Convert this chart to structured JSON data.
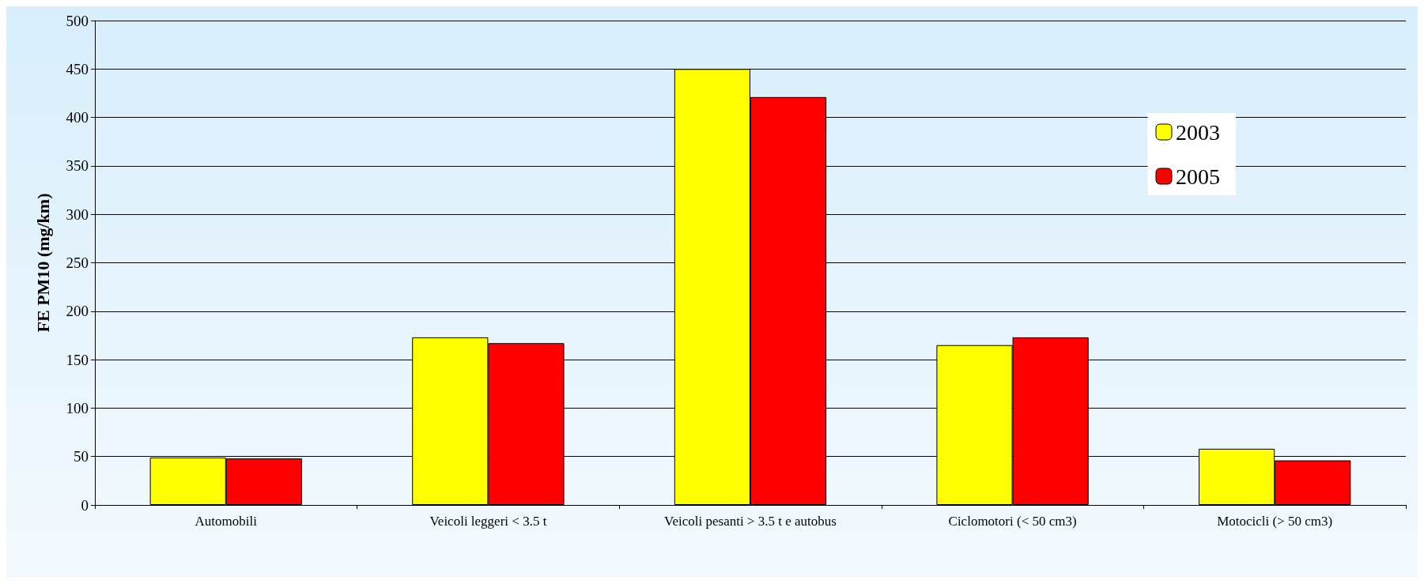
{
  "chart_data": {
    "type": "bar",
    "ylabel": "FE PM10 (mg/km)",
    "categories": [
      "Automobili",
      "Veicoli leggeri < 3.5 t",
      "Veicoli pesanti > 3.5 t e autobus",
      "Ciclomotori (< 50 cm3)",
      "Motocicli (> 50 cm3)"
    ],
    "series": [
      {
        "name": "2003",
        "color": "#ffff00",
        "values": [
          49,
          173,
          450,
          165,
          58
        ]
      },
      {
        "name": "2005",
        "color": "#ff0000",
        "values": [
          48,
          167,
          421,
          173,
          46
        ]
      }
    ],
    "ylim": [
      0,
      500
    ],
    "yticks": [
      0,
      50,
      100,
      150,
      200,
      250,
      300,
      350,
      400,
      450,
      500
    ],
    "grid": "y",
    "legend": "top right"
  }
}
